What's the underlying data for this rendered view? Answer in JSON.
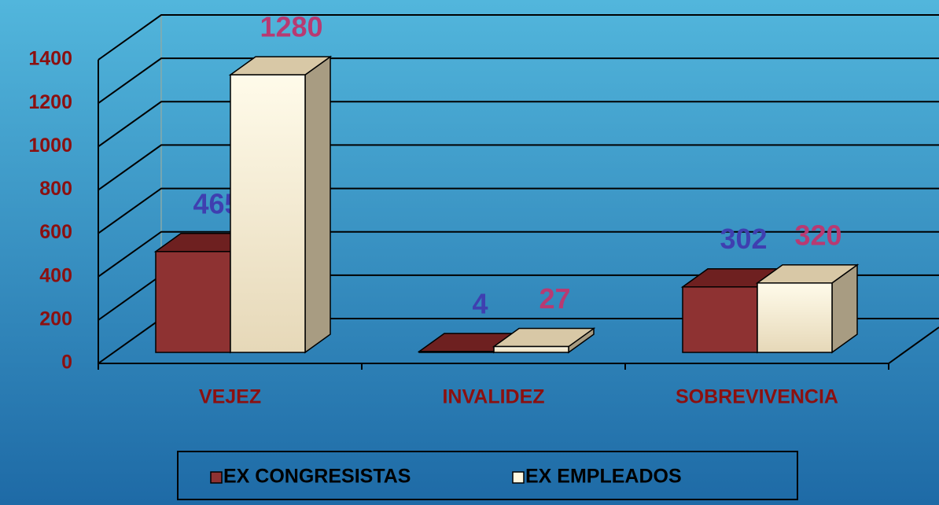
{
  "chart_data": {
    "type": "bar3d",
    "categories": [
      "VEJEZ",
      "INVALIDEZ",
      "SOBREVIVENCIA"
    ],
    "series": [
      {
        "name": "EX CONGRESISTAS",
        "color": "#8e3232",
        "label_color": "#3f3fb0",
        "values": [
          465,
          4,
          302
        ]
      },
      {
        "name": "EX EMPLEADOS",
        "color": "#fff8e0",
        "label_color": "#b83a72",
        "values": [
          1280,
          27,
          320
        ]
      }
    ],
    "ylim": [
      0,
      1400
    ],
    "yticks": [
      0,
      200,
      400,
      600,
      800,
      1000,
      1200,
      1400
    ],
    "grid": true,
    "legend": "bottom"
  }
}
